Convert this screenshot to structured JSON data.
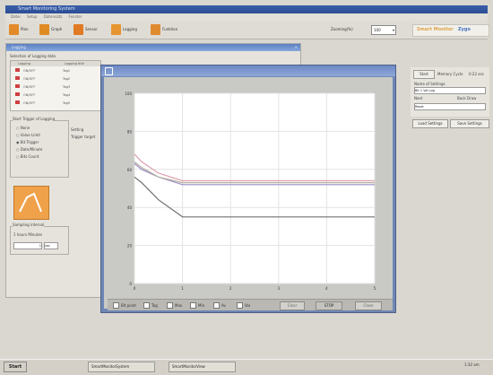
{
  "app": {
    "title": "Smart Monitoring System"
  },
  "menu": [
    "Datei",
    "Setup",
    "Datensatz",
    "Fenster"
  ],
  "toolbar": {
    "items": [
      {
        "label": "Plan",
        "icon": "plan-icon",
        "color": "#e28a2a"
      },
      {
        "label": "Graph",
        "icon": "graph-icon",
        "color": "#e08a24"
      },
      {
        "label": "Sensor",
        "icon": "sensor-icon",
        "color": "#e07a24"
      },
      {
        "label": "Logging",
        "icon": "logging-icon",
        "color": "#e69530"
      },
      {
        "label": "Funktion",
        "icon": "function-icon",
        "color": "#e08a30"
      }
    ],
    "zoom_label": "Zooming(%)",
    "zoom_value": "100",
    "brand_left": "Smart Monitor",
    "brand_right": "Zygo"
  },
  "logging": {
    "title": "Logging",
    "section_title": "Selection of Logging data",
    "table_headers": [
      "Logging",
      "Logging title",
      "Logging"
    ],
    "rows": [
      {
        "state": "ON/OFF",
        "name": "Tag1"
      },
      {
        "state": "ON/OFF",
        "name": "Tag2"
      },
      {
        "state": "ON/OFF",
        "name": "Tag3"
      },
      {
        "state": "ON/OFF",
        "name": "Tag4"
      },
      {
        "state": "ON/OFF",
        "name": "Tag5"
      }
    ],
    "trigger_title": "Start Trigger of Logging",
    "trigger_options": [
      "None",
      "Value Limit",
      "Bit Trigger",
      "Date/Minute",
      "Bits Count"
    ],
    "setting_label": "Setting",
    "trigger_target": "Trigger target",
    "sampling_title": "Sampling interval",
    "sampling_hint": "1 hours Minutes",
    "sampling_value": "1",
    "sampling_unit": "sec"
  },
  "right_panel": {
    "start_button": "Start",
    "memory_cycle": "Memory Cycle",
    "memory_value": "0:22 sec",
    "name_label": "Name of Settings",
    "name_value": "Bit 1 Val Log",
    "next_label": "Next",
    "back_label": "Back Draw",
    "reset_label": "Reset",
    "load_button": "Load Settings",
    "save_button": "Save Settings"
  },
  "chart_window": {
    "title": "",
    "legend": [
      "Bit point",
      "Tag",
      "Max",
      "Min",
      "Av",
      "Val"
    ],
    "buttons": {
      "clear": "Clear",
      "stop": "STOP",
      "close": "Close"
    }
  },
  "chart_data": {
    "type": "line",
    "y_ticks": [
      "100",
      "80",
      "60",
      "40",
      "20",
      "0"
    ],
    "x_ticks": [
      "0",
      "1",
      "2",
      "3",
      "4",
      "5"
    ],
    "ylim": [
      0,
      100
    ],
    "xlim": [
      0,
      5
    ],
    "grid": true,
    "series": [
      {
        "color": "#e0a0b0",
        "x": [
          0,
          0.15,
          0.5,
          1.0,
          5.0
        ],
        "y": [
          68,
          64,
          58,
          54,
          54
        ]
      },
      {
        "color": "#9a8cc8",
        "x": [
          0,
          0.15,
          0.5,
          1.0,
          5.0
        ],
        "y": [
          63,
          60,
          56,
          52,
          52
        ]
      },
      {
        "color": "#b8b0a0",
        "x": [
          0,
          0.15,
          0.5,
          1.0,
          5.0
        ],
        "y": [
          64,
          61,
          56,
          53,
          53
        ]
      },
      {
        "color": "#707070",
        "x": [
          0,
          0.15,
          0.5,
          1.0,
          5.0
        ],
        "y": [
          56,
          53,
          44,
          35,
          35
        ]
      }
    ]
  },
  "taskbar": {
    "start": "Start",
    "tasks": [
      "SmartMonitorSystem",
      "SmartMonitorView"
    ],
    "clock": "1:32 am"
  }
}
